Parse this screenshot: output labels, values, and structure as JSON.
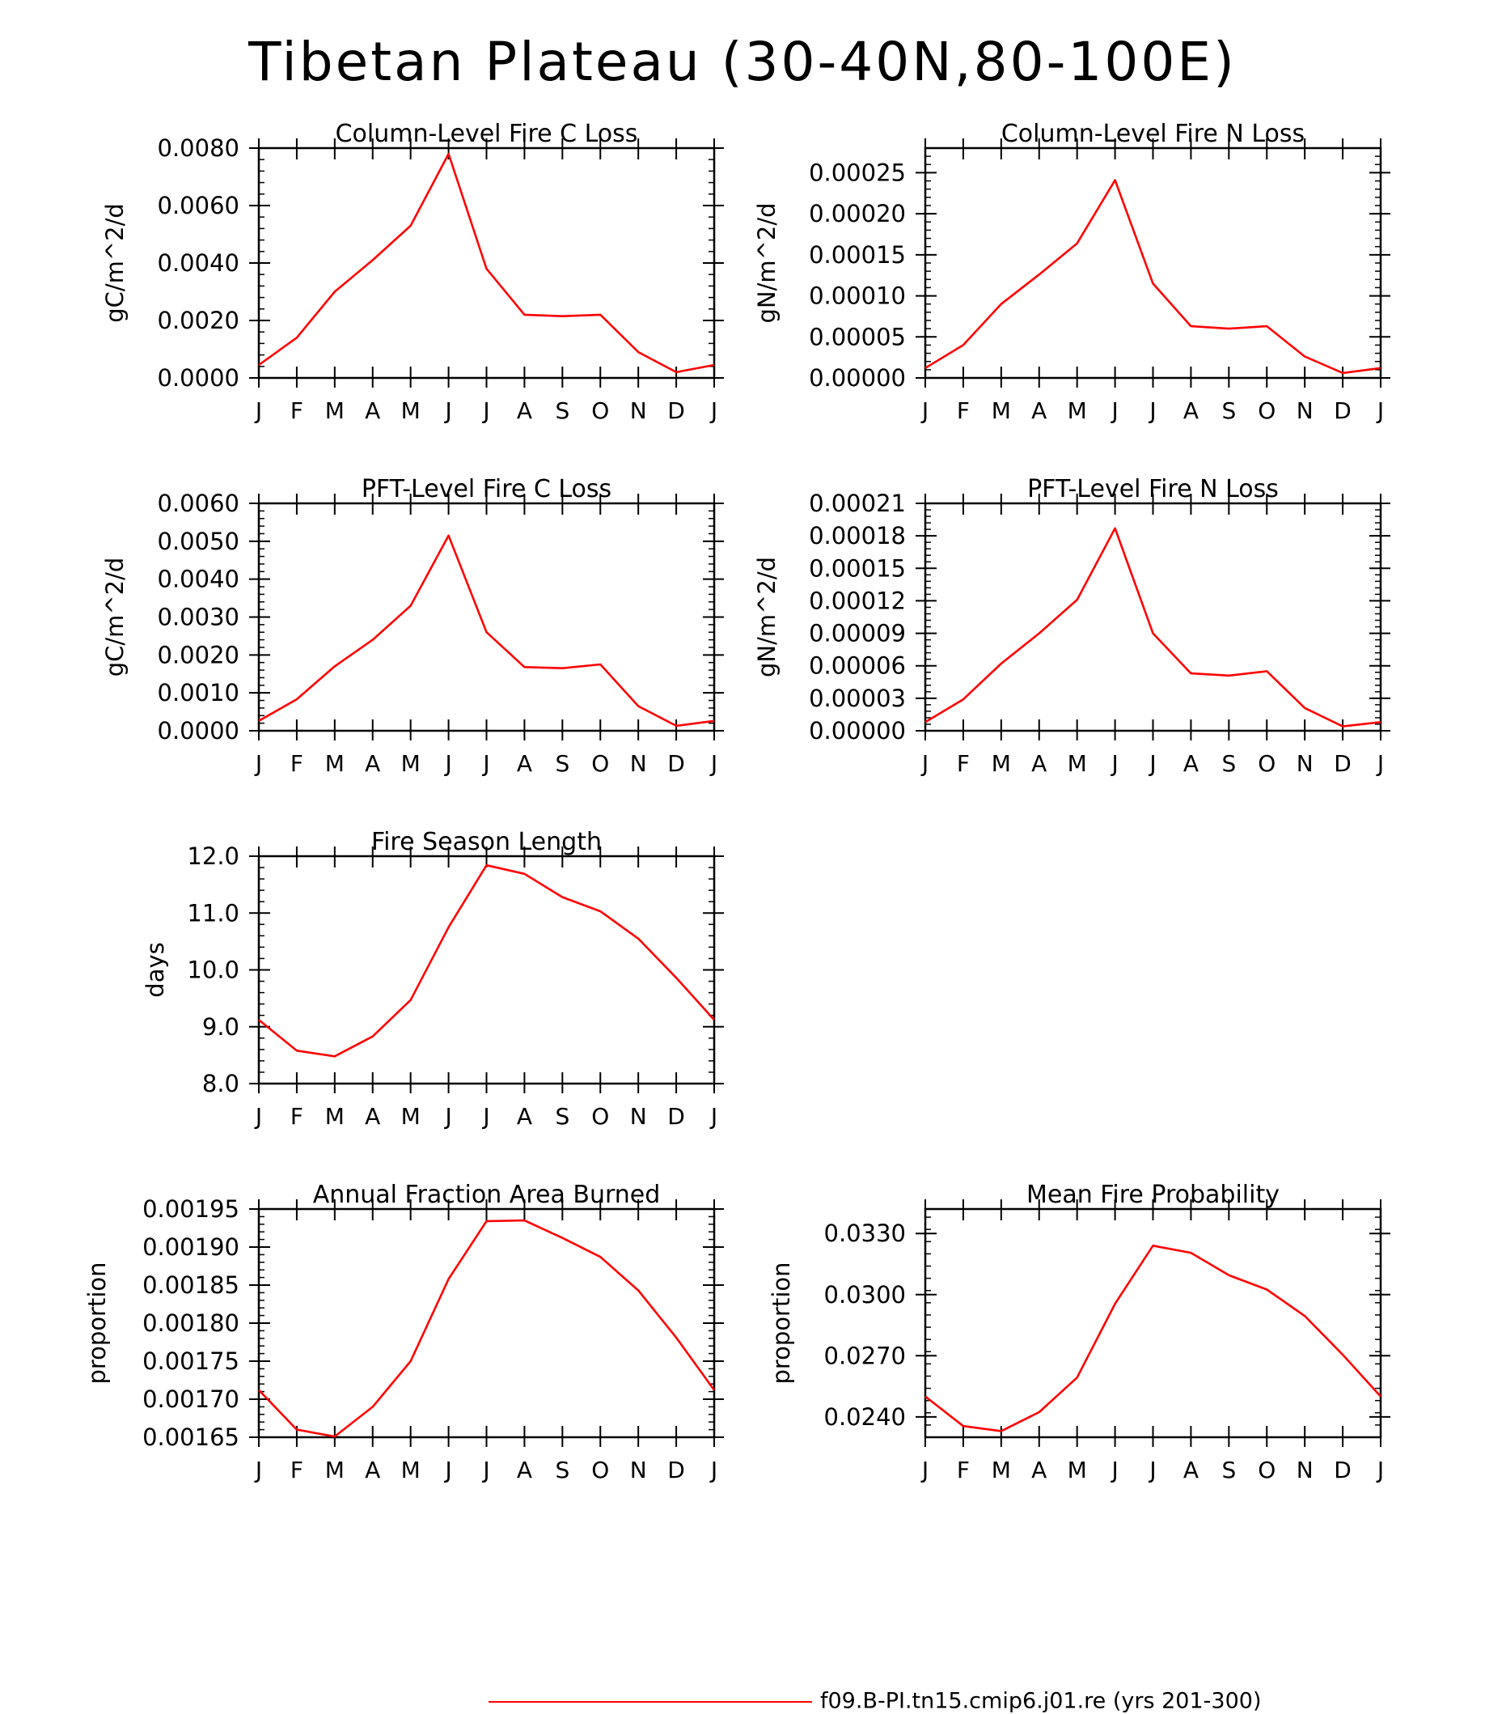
{
  "title": "Tibetan Plateau (30-40N,80-100E)",
  "series_color": "#ff0000",
  "legend": {
    "label": "f09.B-PI.tn15.cmip6.j01.re (yrs 201-300)"
  },
  "chart_data": [
    {
      "type": "line",
      "title": "Column-Level Fire C Loss",
      "ylabel": "gC/m^2/d",
      "categories": [
        "J",
        "F",
        "M",
        "A",
        "M",
        "J",
        "J",
        "A",
        "S",
        "O",
        "N",
        "D",
        "J"
      ],
      "yticks": [
        "0.0000",
        "0.0020",
        "0.0040",
        "0.0060",
        "0.0080"
      ],
      "ylim": [
        0,
        0.008
      ],
      "values": [
        0.00045,
        0.0014,
        0.003,
        0.0041,
        0.0053,
        0.0078,
        0.0038,
        0.0022,
        0.00215,
        0.0022,
        0.0009,
        0.0002,
        0.00045
      ]
    },
    {
      "type": "line",
      "title": "Column-Level Fire N Loss",
      "ylabel": "gN/m^2/d",
      "categories": [
        "J",
        "F",
        "M",
        "A",
        "M",
        "J",
        "J",
        "A",
        "S",
        "O",
        "N",
        "D",
        "J"
      ],
      "yticks": [
        "0.00000",
        "0.00005",
        "0.00010",
        "0.00015",
        "0.00020",
        "0.00025"
      ],
      "ylim": [
        0,
        0.00028
      ],
      "values": [
        1.2e-05,
        4e-05,
        9e-05,
        0.000126,
        0.000164,
        0.000241,
        0.000115,
        6.3e-05,
        6e-05,
        6.3e-05,
        2.6e-05,
        6e-06,
        1.2e-05
      ]
    },
    {
      "type": "line",
      "title": "PFT-Level Fire C Loss",
      "ylabel": "gC/m^2/d",
      "categories": [
        "J",
        "F",
        "M",
        "A",
        "M",
        "J",
        "J",
        "A",
        "S",
        "O",
        "N",
        "D",
        "J"
      ],
      "yticks": [
        "0.0000",
        "0.0010",
        "0.0020",
        "0.0030",
        "0.0040",
        "0.0050",
        "0.0060"
      ],
      "ylim": [
        0,
        0.006
      ],
      "values": [
        0.00026,
        0.00083,
        0.0017,
        0.0024,
        0.0033,
        0.00515,
        0.0026,
        0.00168,
        0.00165,
        0.00175,
        0.00065,
        0.00013,
        0.00026
      ]
    },
    {
      "type": "line",
      "title": "PFT-Level Fire N Loss",
      "ylabel": "gN/m^2/d",
      "categories": [
        "J",
        "F",
        "M",
        "A",
        "M",
        "J",
        "J",
        "A",
        "S",
        "O",
        "N",
        "D",
        "J"
      ],
      "yticks": [
        "0.00000",
        "0.00003",
        "0.00006",
        "0.00009",
        "0.00012",
        "0.00015",
        "0.00018",
        "0.00021"
      ],
      "ylim": [
        0,
        0.00021
      ],
      "values": [
        8e-06,
        2.9e-05,
        6.2e-05,
        9e-05,
        0.000121,
        0.000187,
        9e-05,
        5.3e-05,
        5.1e-05,
        5.5e-05,
        2.1e-05,
        4e-06,
        8e-06
      ]
    },
    {
      "type": "line",
      "title": "Fire Season Length",
      "ylabel": "days",
      "categories": [
        "J",
        "F",
        "M",
        "A",
        "M",
        "J",
        "J",
        "A",
        "S",
        "O",
        "N",
        "D",
        "J"
      ],
      "yticks": [
        "8.0",
        "9.0",
        "10.0",
        "11.0",
        "12.0"
      ],
      "ylim": [
        8.0,
        12.0
      ],
      "values": [
        9.12,
        8.58,
        8.48,
        8.83,
        9.47,
        10.75,
        11.84,
        11.69,
        11.28,
        11.03,
        10.55,
        9.86,
        9.12
      ]
    },
    {
      "type": "line",
      "title": "Annual Fraction Area Burned",
      "ylabel": "proportion",
      "categories": [
        "J",
        "F",
        "M",
        "A",
        "M",
        "J",
        "J",
        "A",
        "S",
        "O",
        "N",
        "D",
        "J"
      ],
      "yticks": [
        "0.00165",
        "0.00170",
        "0.00175",
        "0.00180",
        "0.00185",
        "0.00190",
        "0.00195"
      ],
      "ylim": [
        0.00165,
        0.00195
      ],
      "values": [
        0.001712,
        0.00166,
        0.001651,
        0.00169,
        0.00175,
        0.001858,
        0.001934,
        0.001935,
        0.001912,
        0.001887,
        0.001843,
        0.001781,
        0.001712
      ]
    },
    {
      "type": "line",
      "title": "Mean Fire Probability",
      "ylabel": "proportion",
      "categories": [
        "J",
        "F",
        "M",
        "A",
        "M",
        "J",
        "J",
        "A",
        "S",
        "O",
        "N",
        "D",
        "J"
      ],
      "yticks": [
        "0.0240",
        "0.0270",
        "0.0300",
        "0.0330"
      ],
      "ylim": [
        0.023,
        0.0342
      ],
      "values": [
        0.025,
        0.02355,
        0.0233,
        0.02423,
        0.02593,
        0.02955,
        0.0324,
        0.03205,
        0.03095,
        0.03025,
        0.02895,
        0.02705,
        0.025
      ]
    }
  ]
}
